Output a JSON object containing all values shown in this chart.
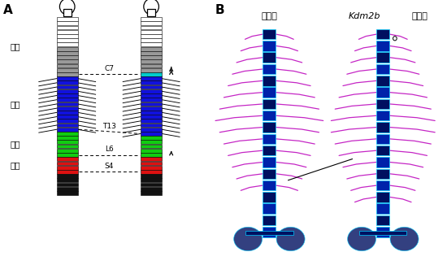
{
  "title_A": "A",
  "title_B": "B",
  "col1_label": "野生型",
  "col2_label_italic": "Kdm2b",
  "col2_label_normal": "ヘテロ",
  "region_labels": [
    "頸椎",
    "胸椎",
    "腹椎",
    "腰椎"
  ],
  "wt_segments": [
    {
      "color": "white",
      "count": 7,
      "ribs": false
    },
    {
      "color": "#999999",
      "count": 7,
      "ribs": false
    },
    {
      "color": "#1111dd",
      "count": 13,
      "ribs": true
    },
    {
      "color": "#11cc11",
      "count": 6,
      "ribs": false
    },
    {
      "color": "#dd1111",
      "count": 4,
      "ribs": false
    },
    {
      "color": "#111111",
      "count": 5,
      "ribs": false
    }
  ],
  "het_segments": [
    {
      "color": "white",
      "count": 7,
      "ribs": false
    },
    {
      "color": "#999999",
      "count": 6,
      "ribs": false
    },
    {
      "color": "#00cccc",
      "count": 1,
      "ribs": false
    },
    {
      "color": "#1111dd",
      "count": 14,
      "ribs": true
    },
    {
      "color": "#11cc11",
      "count": 5,
      "ribs": false
    },
    {
      "color": "#dd1111",
      "count": 4,
      "ribs": false
    },
    {
      "color": "#111111",
      "count": 5,
      "ribs": false
    }
  ],
  "dashed_labels": [
    "C7",
    "T13",
    "L6",
    "S4"
  ],
  "wt_dashed_rows": [
    13,
    26,
    32,
    36
  ],
  "het_dashed_rows": [
    13,
    27,
    32,
    36
  ],
  "bg_color": "#ffffff",
  "panel_split": 0.47
}
